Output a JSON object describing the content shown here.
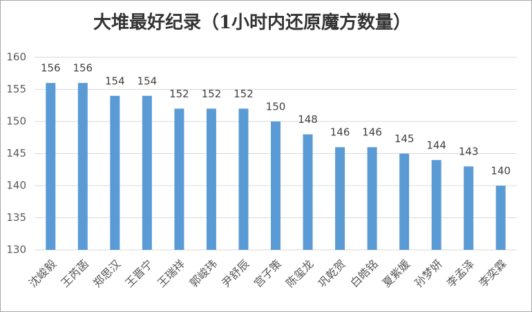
{
  "chart_data": {
    "type": "bar",
    "title": "大堆最好纪录（1小时内还原魔方数量）",
    "categories": [
      "沈峻毅",
      "王芮菡",
      "郑思汉",
      "王晋宁",
      "王瑞祥",
      "郭峻玮",
      "尹舒辰",
      "宫子策",
      "陈玺龙",
      "巩乾贺",
      "白皓铭",
      "夏紫媛",
      "孙梦妍",
      "李孟泽",
      "李奕霖"
    ],
    "values": [
      156,
      156,
      154,
      154,
      152,
      152,
      152,
      150,
      148,
      146,
      146,
      145,
      144,
      143,
      140
    ],
    "color": "#5b9bd5",
    "ylim": [
      130,
      160
    ],
    "yticks": [
      130,
      135,
      140,
      145,
      150,
      155,
      160
    ],
    "grid": true
  }
}
